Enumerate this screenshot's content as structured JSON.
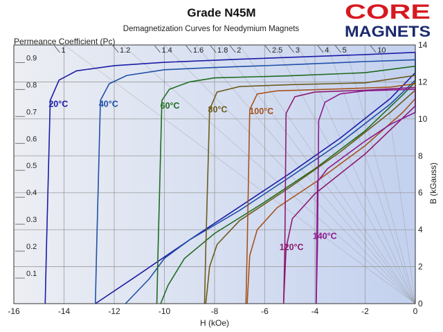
{
  "logo": {
    "line1": "CORE",
    "line2": "MAGNETS",
    "color1": "#d71920",
    "color2": "#1b2a6e"
  },
  "chart_data": {
    "type": "line",
    "title": "Grade N45M",
    "subtitle": "Demagnetization Curves for Neodymium Magnets",
    "xlabel": "H (kOe)",
    "ylabel": "B (kGauss)",
    "pc_label": "Permeance Coefficient (Pc)",
    "xlim": [
      -16,
      0
    ],
    "ylim": [
      0,
      14
    ],
    "x_ticks": [
      "-16",
      "-14",
      "-12",
      "-10",
      "-8",
      "-6",
      "-4",
      "-2",
      "0"
    ],
    "y_ticks": [
      "0",
      "2",
      "4",
      "6",
      "8",
      "10",
      "12",
      "14"
    ],
    "left_ticks": [
      "0.1",
      "0.2",
      "0.3",
      "0.4",
      "0.5",
      "0.6",
      "0.7",
      "0.8",
      "0.9"
    ],
    "pc_values": [
      "1",
      "1.2",
      "1.4",
      "1.6",
      "1.8",
      "2",
      "2.5",
      "3",
      "4",
      "5",
      "10"
    ],
    "grid": true,
    "background": {
      "left": "#eceef3",
      "right": "#c3d1ef"
    },
    "series": [
      {
        "name": "20°C",
        "color": "#1a1aa6",
        "intrinsic": [
          [
            -14.75,
            0
          ],
          [
            -14.7,
            3
          ],
          [
            -14.55,
            11
          ],
          [
            -14.2,
            12.1
          ],
          [
            -13.5,
            12.6
          ],
          [
            -12,
            12.88
          ],
          [
            -10,
            13.06
          ],
          [
            -7,
            13.23
          ],
          [
            -4,
            13.38
          ],
          [
            -2,
            13.48
          ],
          [
            0,
            13.6
          ]
        ],
        "normal": [
          [
            -12.75,
            0
          ],
          [
            -11,
            1.6
          ],
          [
            -9,
            3.45
          ],
          [
            -7,
            5.25
          ],
          [
            -5,
            7.05
          ],
          [
            -3,
            8.95
          ],
          [
            -1,
            11.1
          ],
          [
            0,
            12.5
          ],
          [
            0,
            13.6
          ]
        ]
      },
      {
        "name": "40°C",
        "color": "#1f4fa8",
        "intrinsic": [
          [
            -12.75,
            0
          ],
          [
            -12.7,
            3
          ],
          [
            -12.55,
            11
          ],
          [
            -12.2,
            11.9
          ],
          [
            -11.5,
            12.35
          ],
          [
            -10,
            12.66
          ],
          [
            -8,
            12.78
          ],
          [
            -5,
            12.93
          ],
          [
            -2,
            13.1
          ],
          [
            0,
            13.2
          ]
        ],
        "normal": [
          [
            -11.55,
            0
          ],
          [
            -10.6,
            1.35
          ],
          [
            -10,
            2.45
          ],
          [
            -9,
            3.45
          ],
          [
            -7,
            5.05
          ],
          [
            -5,
            6.85
          ],
          [
            -3,
            8.7
          ],
          [
            -1,
            10.8
          ],
          [
            0,
            12.1
          ],
          [
            0,
            13.2
          ]
        ]
      },
      {
        "name": "60°C",
        "color": "#1e6b1e",
        "intrinsic": [
          [
            -10.3,
            0
          ],
          [
            -10.25,
            3
          ],
          [
            -10.1,
            11
          ],
          [
            -9.8,
            11.6
          ],
          [
            -9,
            12.0
          ],
          [
            -8,
            12.22
          ],
          [
            -5,
            12.33
          ],
          [
            -2,
            12.5
          ],
          [
            0,
            12.85
          ]
        ],
        "normal": [
          [
            -10.15,
            0
          ],
          [
            -9.85,
            1.0
          ],
          [
            -9.2,
            2.45
          ],
          [
            -8,
            3.8
          ],
          [
            -6,
            5.5
          ],
          [
            -4,
            7.3
          ],
          [
            -2,
            9.35
          ],
          [
            -0.5,
            11.3
          ],
          [
            0,
            12.0
          ],
          [
            0,
            12.85
          ]
        ]
      },
      {
        "name": "80°C",
        "color": "#6b5a1a",
        "intrinsic": [
          [
            -8.4,
            0
          ],
          [
            -8.35,
            3
          ],
          [
            -8.2,
            10.5
          ],
          [
            -7.9,
            11.45
          ],
          [
            -7,
            11.75
          ],
          [
            -5,
            11.85
          ],
          [
            -2,
            11.95
          ],
          [
            0,
            12.35
          ]
        ],
        "normal": [
          [
            -8.35,
            0
          ],
          [
            -8.2,
            2.0
          ],
          [
            -7.9,
            3.2
          ],
          [
            -7,
            4.5
          ],
          [
            -5,
            6.3
          ],
          [
            -3,
            8.2
          ],
          [
            -1,
            10.35
          ],
          [
            0,
            11.55
          ],
          [
            0,
            12.35
          ]
        ]
      },
      {
        "name": "100°C",
        "color": "#a6521a",
        "intrinsic": [
          [
            -6.75,
            0
          ],
          [
            -6.7,
            3
          ],
          [
            -6.6,
            10.5
          ],
          [
            -6.3,
            11.35
          ],
          [
            -5.5,
            11.52
          ],
          [
            -3,
            11.62
          ],
          [
            -1,
            11.72
          ],
          [
            0,
            11.9
          ]
        ],
        "normal": [
          [
            -6.7,
            0
          ],
          [
            -6.6,
            2.6
          ],
          [
            -6.3,
            4.0
          ],
          [
            -5.5,
            5.2
          ],
          [
            -4,
            6.55
          ],
          [
            -2,
            8.55
          ],
          [
            -0.5,
            10.35
          ],
          [
            0,
            11.1
          ],
          [
            0,
            11.9
          ]
        ]
      },
      {
        "name": "120°C",
        "color": "#8c1a6e",
        "intrinsic": [
          [
            -5.25,
            0
          ],
          [
            -5.2,
            3
          ],
          [
            -5.15,
            10.3
          ],
          [
            -4.8,
            11.2
          ],
          [
            -4,
            11.45
          ],
          [
            -2,
            11.55
          ],
          [
            0,
            11.7
          ]
        ],
        "normal": [
          [
            -5.25,
            0
          ],
          [
            -5.15,
            3.0
          ],
          [
            -4.9,
            4.6
          ],
          [
            -4,
            5.95
          ],
          [
            -2,
            8.1
          ],
          [
            0,
            10.7
          ],
          [
            0,
            11.7
          ]
        ]
      },
      {
        "name": "140°C",
        "color": "#8c1a8c",
        "intrinsic": [
          [
            -3.95,
            0
          ],
          [
            -3.9,
            3
          ],
          [
            -3.85,
            9.9
          ],
          [
            -3.6,
            10.9
          ],
          [
            -3,
            11.35
          ],
          [
            -2,
            11.52
          ],
          [
            0,
            11.6
          ]
        ],
        "normal": [
          [
            -3.95,
            0
          ],
          [
            -3.9,
            6.6
          ],
          [
            -3.5,
            7.3
          ],
          [
            -2,
            8.8
          ],
          [
            -1,
            9.7
          ],
          [
            0,
            10.35
          ],
          [
            0,
            11.6
          ]
        ]
      }
    ]
  }
}
